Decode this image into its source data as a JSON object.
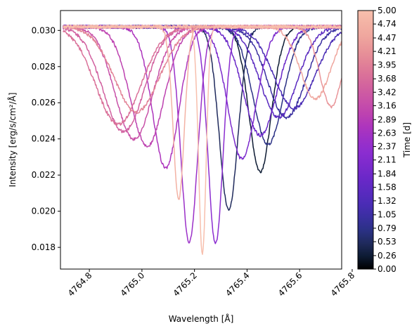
{
  "chart_data": {
    "type": "line",
    "xlabel": "Wavelength [Å]",
    "ylabel": "Intensity [erg/s/cm²/Å]",
    "xlim": [
      4764.69,
      4765.76
    ],
    "ylim": [
      0.0168,
      0.0311
    ],
    "x_ticks": [
      4764.8,
      4765.0,
      4765.2,
      4765.4,
      4765.6,
      4765.8
    ],
    "x_tick_labels": [
      "4764.8",
      "4765.0",
      "4765.2",
      "4765.4",
      "4765.6",
      "4765.8"
    ],
    "y_ticks": [
      0.018,
      0.02,
      0.022,
      0.024,
      0.026,
      0.028,
      0.03
    ],
    "y_tick_labels": [
      "0.018",
      "0.020",
      "0.022",
      "0.024",
      "0.026",
      "0.028",
      "0.030"
    ],
    "grid": false,
    "continuum": 0.0302,
    "line_width_angstrom": 0.028,
    "series": [
      {
        "time": 0.0,
        "color": "#0d1b33",
        "center": 4765.45,
        "depth": 0.008,
        "width": 0.06
      },
      {
        "time": 0.26,
        "color": "#1f2a5c",
        "center": 4765.33,
        "depth": 0.0101,
        "width": 0.05
      },
      {
        "time": 0.53,
        "color": "#2b3185",
        "center": 4765.48,
        "depth": 0.0065,
        "width": 0.08
      },
      {
        "time": 0.79,
        "color": "#3a2fa0",
        "center": 4765.55,
        "depth": 0.005,
        "width": 0.1
      },
      {
        "time": 1.05,
        "color": "#4a2cb5",
        "center": 4765.58,
        "depth": 0.0045,
        "width": 0.11
      },
      {
        "time": 1.32,
        "color": "#5a2ac0",
        "center": 4765.52,
        "depth": 0.005,
        "width": 0.1
      },
      {
        "time": 1.58,
        "color": "#6a28c8",
        "center": 4765.45,
        "depth": 0.006,
        "width": 0.09
      },
      {
        "time": 1.84,
        "color": "#7b2acc",
        "center": 4765.38,
        "depth": 0.0073,
        "width": 0.075
      },
      {
        "time": 2.11,
        "color": "#8b2dd0",
        "center": 4765.28,
        "depth": 0.012,
        "width": 0.04
      },
      {
        "time": 2.37,
        "color": "#9b30c8",
        "center": 4765.18,
        "depth": 0.0119,
        "width": 0.045
      },
      {
        "time": 2.63,
        "color": "#ad35bd",
        "center": 4765.09,
        "depth": 0.0078,
        "width": 0.07
      },
      {
        "time": 2.89,
        "color": "#bd42b0",
        "center": 4765.02,
        "depth": 0.0066,
        "width": 0.09
      },
      {
        "time": 3.16,
        "color": "#c851a8",
        "center": 4764.97,
        "depth": 0.0062,
        "width": 0.1
      },
      {
        "time": 3.42,
        "color": "#d1609f",
        "center": 4764.93,
        "depth": 0.0058,
        "width": 0.11
      },
      {
        "time": 3.68,
        "color": "#da7199",
        "center": 4764.91,
        "depth": 0.0054,
        "width": 0.12
      },
      {
        "time": 3.95,
        "color": "#e28397",
        "center": 4764.98,
        "depth": 0.0047,
        "width": 0.12
      },
      {
        "time": 4.21,
        "color": "#e99599",
        "center": 4765.72,
        "depth": 0.0044,
        "width": 0.06
      },
      {
        "time": 4.47,
        "color": "#efa69e",
        "center": 4765.66,
        "depth": 0.004,
        "width": 0.08
      },
      {
        "time": 4.74,
        "color": "#f3b2a4",
        "center": 4765.14,
        "depth": 0.0095,
        "width": 0.03
      },
      {
        "time": 5.0,
        "color": "#f7bfad",
        "center": 4765.23,
        "depth": 0.0126,
        "width": 0.02
      }
    ],
    "colorbar": {
      "label": "Time [d]",
      "min": 0.0,
      "max": 5.0,
      "tick_labels": [
        "0.00",
        "0.26",
        "0.53",
        "0.79",
        "1.05",
        "1.32",
        "1.58",
        "1.84",
        "2.11",
        "2.37",
        "2.63",
        "2.89",
        "3.16",
        "3.42",
        "3.68",
        "3.95",
        "4.21",
        "4.47",
        "4.74",
        "5.00"
      ],
      "colors": [
        "#000000",
        "#0d1b33",
        "#1f2a5c",
        "#2b3185",
        "#3a2fa0",
        "#4a2cb5",
        "#5a2ac0",
        "#6a28c8",
        "#7b2acc",
        "#8b2dd0",
        "#9b30c8",
        "#ad35bd",
        "#bd42b0",
        "#c851a8",
        "#d1609f",
        "#da7199",
        "#e28397",
        "#e99599",
        "#efa69e",
        "#f3b2a4",
        "#f7bfad"
      ]
    }
  }
}
